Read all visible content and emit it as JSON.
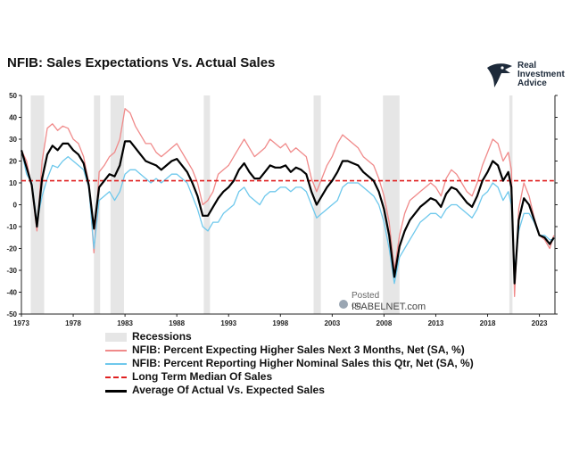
{
  "title": "NFIB: Sales Expectations Vs. Actual Sales",
  "logo": {
    "line1": "Real",
    "line2": "Investment",
    "line3": "Advice",
    "icon": "eagle-head-icon"
  },
  "watermark": {
    "posted": "Posted on",
    "site": "ISABELNET.com"
  },
  "chart_data": {
    "type": "line",
    "title": "NFIB: Sales Expectations Vs. Actual Sales",
    "xlabel": "",
    "ylabel": "",
    "xlim": [
      1973,
      2024.5
    ],
    "ylim": [
      -50,
      50
    ],
    "yticks": [
      50,
      40,
      30,
      20,
      10,
      0,
      -10,
      -20,
      -30,
      -40,
      -50
    ],
    "xticks": [
      1973,
      1978,
      1983,
      1988,
      1993,
      1998,
      2003,
      2008,
      2013,
      2018,
      2023
    ],
    "xtick_labels": [
      "1973",
      "1978",
      "1983",
      "1988",
      "1993",
      "1998",
      "2003",
      "2008",
      "2013",
      "2018",
      "2023"
    ],
    "grid": false,
    "recessions": [
      [
        1973.9,
        1975.2
      ],
      [
        1980.0,
        1980.6
      ],
      [
        1981.6,
        1982.9
      ],
      [
        1990.6,
        1991.2
      ],
      [
        2001.2,
        2001.9
      ],
      [
        2007.9,
        2009.5
      ],
      [
        2020.1,
        2020.4
      ]
    ],
    "x": [
      1973.0,
      1973.5,
      1974.0,
      1974.5,
      1975.0,
      1975.5,
      1976.0,
      1976.5,
      1977.0,
      1977.5,
      1978.0,
      1978.5,
      1979.0,
      1979.5,
      1980.0,
      1980.5,
      1981.0,
      1981.5,
      1982.0,
      1982.5,
      1983.0,
      1983.5,
      1984.0,
      1984.5,
      1985.0,
      1985.5,
      1986.0,
      1986.5,
      1987.0,
      1987.5,
      1988.0,
      1988.5,
      1989.0,
      1989.5,
      1990.0,
      1990.5,
      1991.0,
      1991.5,
      1992.0,
      1992.5,
      1993.0,
      1993.5,
      1994.0,
      1994.5,
      1995.0,
      1995.5,
      1996.0,
      1996.5,
      1997.0,
      1997.5,
      1998.0,
      1998.5,
      1999.0,
      1999.5,
      2000.0,
      2000.5,
      2001.0,
      2001.5,
      2002.0,
      2002.5,
      2003.0,
      2003.5,
      2004.0,
      2004.5,
      2005.0,
      2005.5,
      2006.0,
      2006.5,
      2007.0,
      2007.5,
      2008.0,
      2008.5,
      2009.0,
      2009.5,
      2010.0,
      2010.5,
      2011.0,
      2011.5,
      2012.0,
      2012.5,
      2013.0,
      2013.5,
      2014.0,
      2014.5,
      2015.0,
      2015.5,
      2016.0,
      2016.5,
      2017.0,
      2017.5,
      2018.0,
      2018.5,
      2019.0,
      2019.5,
      2020.0,
      2020.3,
      2020.6,
      2021.0,
      2021.5,
      2022.0,
      2022.5,
      2023.0,
      2023.5,
      2024.0,
      2024.4
    ],
    "series": [
      {
        "name": "NFIB: Percent Expecting Higher Sales Next 3 Months, Net (SA, %)",
        "color": "#f08a8a",
        "values": [
          25,
          20,
          8,
          -12,
          20,
          35,
          37,
          34,
          36,
          35,
          30,
          28,
          22,
          10,
          -22,
          15,
          18,
          22,
          24,
          30,
          44,
          42,
          36,
          32,
          28,
          28,
          24,
          22,
          24,
          26,
          28,
          24,
          20,
          16,
          10,
          0,
          2,
          6,
          14,
          16,
          18,
          22,
          26,
          30,
          26,
          22,
          24,
          26,
          30,
          28,
          26,
          28,
          24,
          26,
          24,
          22,
          12,
          6,
          12,
          18,
          22,
          28,
          32,
          30,
          28,
          26,
          22,
          20,
          18,
          12,
          4,
          -8,
          -30,
          -14,
          -4,
          2,
          4,
          6,
          8,
          10,
          8,
          4,
          12,
          16,
          14,
          10,
          6,
          4,
          10,
          18,
          24,
          30,
          28,
          20,
          24,
          16,
          -42,
          -2,
          10,
          4,
          -6,
          -14,
          -16,
          -20,
          -14
        ]
      },
      {
        "name": "NFIB: Percent Reporting Higher Nominal Sales this Qtr, Net (SA, %)",
        "color": "#6ec8ec",
        "values": [
          25,
          14,
          10,
          -8,
          4,
          12,
          18,
          17,
          20,
          22,
          20,
          18,
          16,
          8,
          -20,
          2,
          4,
          6,
          2,
          6,
          14,
          16,
          16,
          14,
          12,
          10,
          12,
          10,
          12,
          14,
          14,
          12,
          10,
          4,
          -2,
          -10,
          -12,
          -8,
          -8,
          -4,
          -2,
          0,
          6,
          8,
          4,
          2,
          0,
          4,
          6,
          6,
          8,
          8,
          6,
          8,
          8,
          6,
          0,
          -6,
          -4,
          -2,
          0,
          2,
          8,
          10,
          10,
          10,
          8,
          6,
          4,
          0,
          -8,
          -20,
          -36,
          -24,
          -20,
          -16,
          -12,
          -8,
          -6,
          -4,
          -4,
          -6,
          -2,
          0,
          0,
          -2,
          -4,
          -6,
          -2,
          4,
          6,
          10,
          8,
          2,
          6,
          0,
          -30,
          -12,
          -4,
          -4,
          -8,
          -14,
          -14,
          -16,
          -16
        ]
      },
      {
        "name": "Long Term Median Of Sales",
        "color": "#e02020",
        "dashed": true,
        "values": [
          11,
          11,
          11,
          11,
          11,
          11,
          11,
          11,
          11,
          11,
          11,
          11,
          11,
          11,
          11,
          11,
          11,
          11,
          11,
          11,
          11,
          11,
          11,
          11,
          11,
          11,
          11,
          11,
          11,
          11,
          11,
          11,
          11,
          11,
          11,
          11,
          11,
          11,
          11,
          11,
          11,
          11,
          11,
          11,
          11,
          11,
          11,
          11,
          11,
          11,
          11,
          11,
          11,
          11,
          11,
          11,
          11,
          11,
          11,
          11,
          11,
          11,
          11,
          11,
          11,
          11,
          11,
          11,
          11,
          11,
          11,
          11,
          11,
          11,
          11,
          11,
          11,
          11,
          11,
          11,
          11,
          11,
          11,
          11,
          11,
          11,
          11,
          11,
          11,
          11,
          11,
          11,
          11,
          11,
          11,
          11,
          11,
          11,
          11,
          11,
          11,
          11,
          11,
          11,
          11
        ]
      },
      {
        "name": "Average Of Actual Vs. Expected Sales",
        "color": "#000000",
        "values": [
          25,
          17,
          9,
          -10,
          12,
          23,
          27,
          25,
          28,
          28,
          25,
          23,
          19,
          9,
          -11,
          8,
          11,
          14,
          13,
          18,
          29,
          29,
          26,
          23,
          20,
          19,
          18,
          16,
          18,
          20,
          21,
          18,
          15,
          10,
          4,
          -5,
          -5,
          -1,
          3,
          6,
          8,
          11,
          16,
          19,
          15,
          12,
          12,
          15,
          18,
          17,
          17,
          18,
          15,
          17,
          16,
          14,
          6,
          0,
          4,
          8,
          11,
          15,
          20,
          20,
          19,
          18,
          15,
          13,
          11,
          6,
          -2,
          -14,
          -33,
          -19,
          -12,
          -7,
          -4,
          -1,
          1,
          3,
          2,
          -1,
          5,
          8,
          7,
          4,
          1,
          -1,
          4,
          11,
          15,
          20,
          18,
          11,
          15,
          8,
          -36,
          -7,
          3,
          0,
          -7,
          -14,
          -15,
          -18,
          -15
        ]
      }
    ]
  },
  "legend": {
    "recessions": "Recessions",
    "expected": "NFIB: Percent Expecting Higher Sales Next 3 Months, Net (SA, %)",
    "actual": "NFIB: Percent Reporting Higher Nominal Sales this Qtr, Net (SA, %)",
    "median": "Long Term Median Of Sales",
    "average": "Average Of Actual Vs. Expected Sales",
    "colors": {
      "recessions": "#e6e6e6",
      "expected": "#f08a8a",
      "actual": "#6ec8ec",
      "median": "#e02020",
      "average": "#000000"
    }
  }
}
